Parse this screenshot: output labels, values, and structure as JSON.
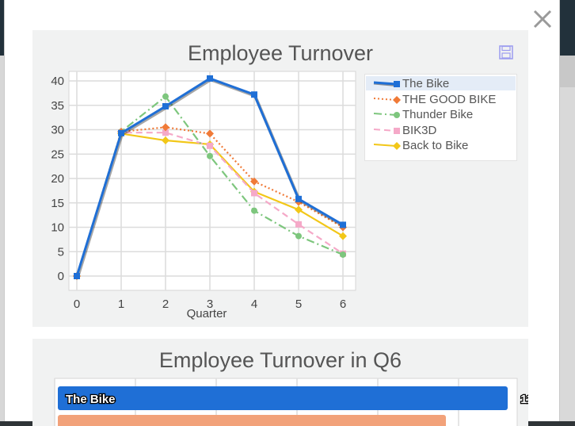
{
  "chart1": {
    "title": "Employee Turnover",
    "save_icon": "floppy-disk-icon",
    "close_icon": "close-icon",
    "chart_data": {
      "type": "line",
      "title": "Employee Turnover",
      "xlabel": "Quarter",
      "ylabel": "",
      "x": [
        0,
        1,
        2,
        3,
        4,
        5,
        6
      ],
      "xlim": [
        0,
        6
      ],
      "ylim": [
        0,
        40
      ],
      "yticks": [
        0,
        5,
        10,
        15,
        20,
        25,
        30,
        35,
        40
      ],
      "grid": true,
      "legend_position": "right",
      "series": [
        {
          "name": "The Bike",
          "color": "#1f6fd6",
          "style": "solid",
          "marker": "square",
          "values": [
            0,
            29.3,
            34.8,
            40.5,
            37.2,
            15.8,
            10.5
          ]
        },
        {
          "name": "THE GOOD BIKE",
          "color": "#f07a37",
          "style": "dotted",
          "marker": "diamond",
          "values": [
            0,
            29.6,
            30.5,
            29.2,
            19.4,
            15.2,
            10.0
          ]
        },
        {
          "name": "Thunder Bike",
          "color": "#7dc67d",
          "style": "dashdot",
          "marker": "circle",
          "values": [
            0,
            29.6,
            36.8,
            24.6,
            13.4,
            8.2,
            4.4
          ]
        },
        {
          "name": "BIK3D",
          "color": "#f5a9c8",
          "style": "dashed",
          "marker": "square",
          "values": [
            0,
            29.4,
            29.4,
            26.7,
            17.0,
            10.6,
            4.6
          ]
        },
        {
          "name": "Back to Bike",
          "color": "#f2c718",
          "style": "solid",
          "marker": "diamond",
          "values": [
            0,
            29.2,
            27.8,
            27.0,
            17.3,
            13.6,
            8.2
          ]
        }
      ]
    }
  },
  "chart2": {
    "title": "Employee Turnover in Q6",
    "chart_data": {
      "type": "bar",
      "orientation": "horizontal",
      "title": "Employee Turnover in Q6",
      "categories": [
        "The Bike"
      ],
      "values": [
        11
      ],
      "bar_color": "#1f6fd6"
    }
  }
}
